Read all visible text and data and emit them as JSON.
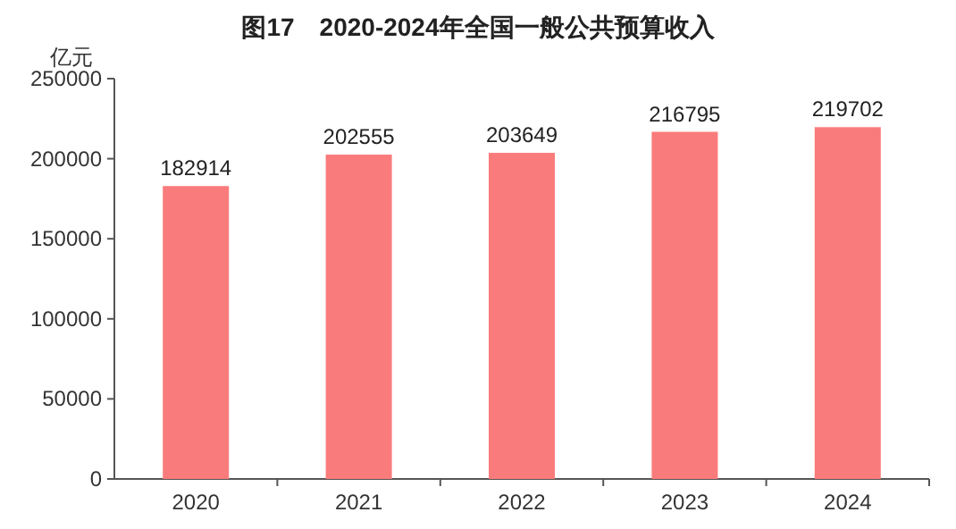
{
  "chart_data": {
    "type": "bar",
    "title": "图17　2020-2024年全国一般公共预算收入",
    "ylabel": "亿元",
    "categories": [
      "2020",
      "2021",
      "2022",
      "2023",
      "2024"
    ],
    "values": [
      182914,
      202555,
      203649,
      216795,
      219702
    ],
    "color": "#fa7b7b",
    "ylim": [
      0,
      250000
    ],
    "yticks": [
      0,
      50000,
      100000,
      150000,
      200000,
      250000
    ],
    "data_labels": true,
    "grid": false
  }
}
